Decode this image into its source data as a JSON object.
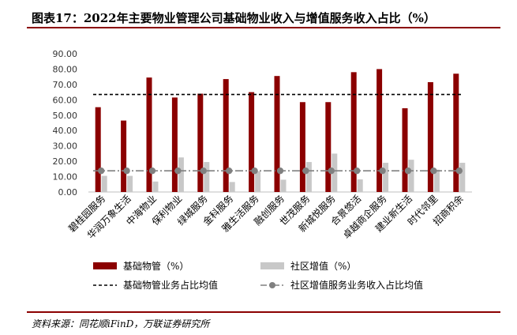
{
  "title": "图表17：2022年主要物业管理公司基础物业收入与增值服务收入占比（%）",
  "source": "资料来源：同花顺iFinD，万联证券研究所",
  "chart_data": {
    "type": "bar",
    "categories": [
      "碧桂园服务",
      "华润万象生活",
      "中海物业",
      "保利物业",
      "绿城服务",
      "金科服务",
      "雅生活服务",
      "融创服务",
      "世茂服务",
      "新城悦服务",
      "合景悠活",
      "卓越商企服务",
      "建业新生活",
      "时代邻里",
      "招商积余"
    ],
    "series": [
      {
        "name": "基础物管（%）",
        "kind": "bar",
        "color": "#8b0000",
        "values": [
          55.2,
          46.5,
          74.5,
          61.5,
          64.0,
          73.5,
          65.0,
          75.5,
          58.5,
          58.5,
          78.0,
          80.0,
          54.5,
          71.5,
          77.0
        ]
      },
      {
        "name": "社区增值（%）",
        "kind": "bar",
        "color": "#c8c8c8",
        "values": [
          10.5,
          10.5,
          6.8,
          22.5,
          19.5,
          6.5,
          13.5,
          8.0,
          19.5,
          25.0,
          8.2,
          19.0,
          21.0,
          14.5,
          19.0
        ]
      },
      {
        "name": "基础物管业务占比均值",
        "kind": "dashed-line",
        "color": "#000000",
        "value": 63.5
      },
      {
        "name": "社区增值服务业务收入占比均值",
        "kind": "dash-dot-marker-line",
        "color": "#808080",
        "value": 13.8
      }
    ],
    "y_ticks": [
      "0.00",
      "10.00",
      "20.00",
      "30.00",
      "40.00",
      "50.00",
      "60.00",
      "70.00",
      "80.00",
      "90.00"
    ],
    "ylim": [
      0,
      90
    ],
    "grid": false,
    "legend_position": "bottom"
  }
}
